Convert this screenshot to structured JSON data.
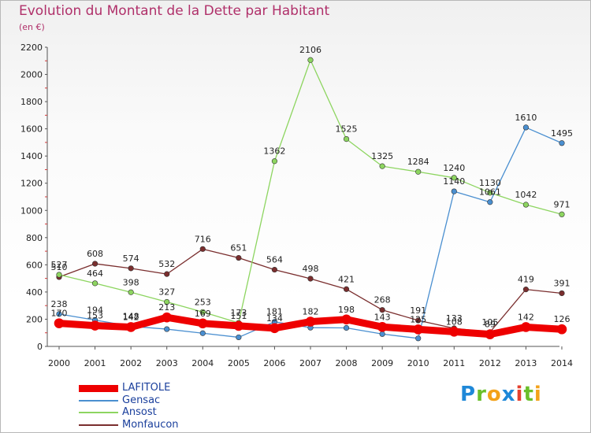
{
  "header": {
    "title": "Evolution du Montant de la Dette par Habitant",
    "subtitle": "(en €)"
  },
  "brand": {
    "letters": [
      "P",
      "r",
      "o",
      "x",
      "i",
      "t",
      "i"
    ],
    "colors": [
      "#1e88d8",
      "#6abf2a",
      "#f3a21a",
      "#1e88d8",
      "#e4402e",
      "#6abf2a",
      "#f3a21a"
    ]
  },
  "chart_data": {
    "type": "line",
    "x": [
      "2000",
      "2001",
      "2002",
      "2003",
      "2004",
      "2005",
      "2006",
      "2007",
      "2008",
      "2009",
      "2010",
      "2011",
      "2012",
      "2013",
      "2014"
    ],
    "ylim": [
      0,
      2200
    ],
    "yticks": [
      0,
      200,
      400,
      600,
      800,
      1000,
      1200,
      1400,
      1600,
      1800,
      2000,
      2200
    ],
    "grid": false,
    "legend": "bottom-left",
    "series": [
      {
        "name": "LAFITOLE",
        "color": "#ee0000",
        "thick": true,
        "values": [
          170,
          153,
          142,
          213,
          169,
          151,
          134,
          182,
          198,
          143,
          125,
          108,
          89,
          142,
          126
        ],
        "labels": [
          "170",
          "153",
          "142",
          "213",
          "169",
          "151",
          "134",
          "182",
          "198",
          "143",
          "125",
          "108",
          "89",
          "142",
          "126"
        ]
      },
      {
        "name": "Gensac",
        "color": "#4a8fd0",
        "thick": false,
        "values": [
          238,
          194,
          148,
          127,
          97,
          67,
          181,
          138,
          136,
          91,
          59,
          1140,
          1061,
          1610,
          1495
        ],
        "labels": [
          "238",
          "194",
          "148",
          "",
          "",
          "",
          "181",
          "",
          "",
          "",
          "",
          "1140",
          "1061",
          "1610",
          "1495"
        ]
      },
      {
        "name": "Ansost",
        "color": "#8dd560",
        "thick": false,
        "values": [
          527,
          464,
          398,
          327,
          253,
          173,
          1362,
          2106,
          1525,
          1325,
          1284,
          1240,
          1130,
          1042,
          971
        ],
        "labels": [
          "527",
          "464",
          "398",
          "327",
          "253",
          "173",
          "1362",
          "2106",
          "1525",
          "1325",
          "1284",
          "1240",
          "1130",
          "1042",
          "971"
        ]
      },
      {
        "name": "Monfaucon",
        "color": "#7a2e2e",
        "thick": false,
        "values": [
          510,
          608,
          574,
          532,
          716,
          651,
          564,
          498,
          421,
          268,
          191,
          133,
          105,
          419,
          391
        ],
        "labels": [
          "510",
          "608",
          "574",
          "532",
          "716",
          "651",
          "564",
          "498",
          "421",
          "268",
          "191",
          "133",
          "105",
          "419",
          "391"
        ]
      }
    ]
  }
}
